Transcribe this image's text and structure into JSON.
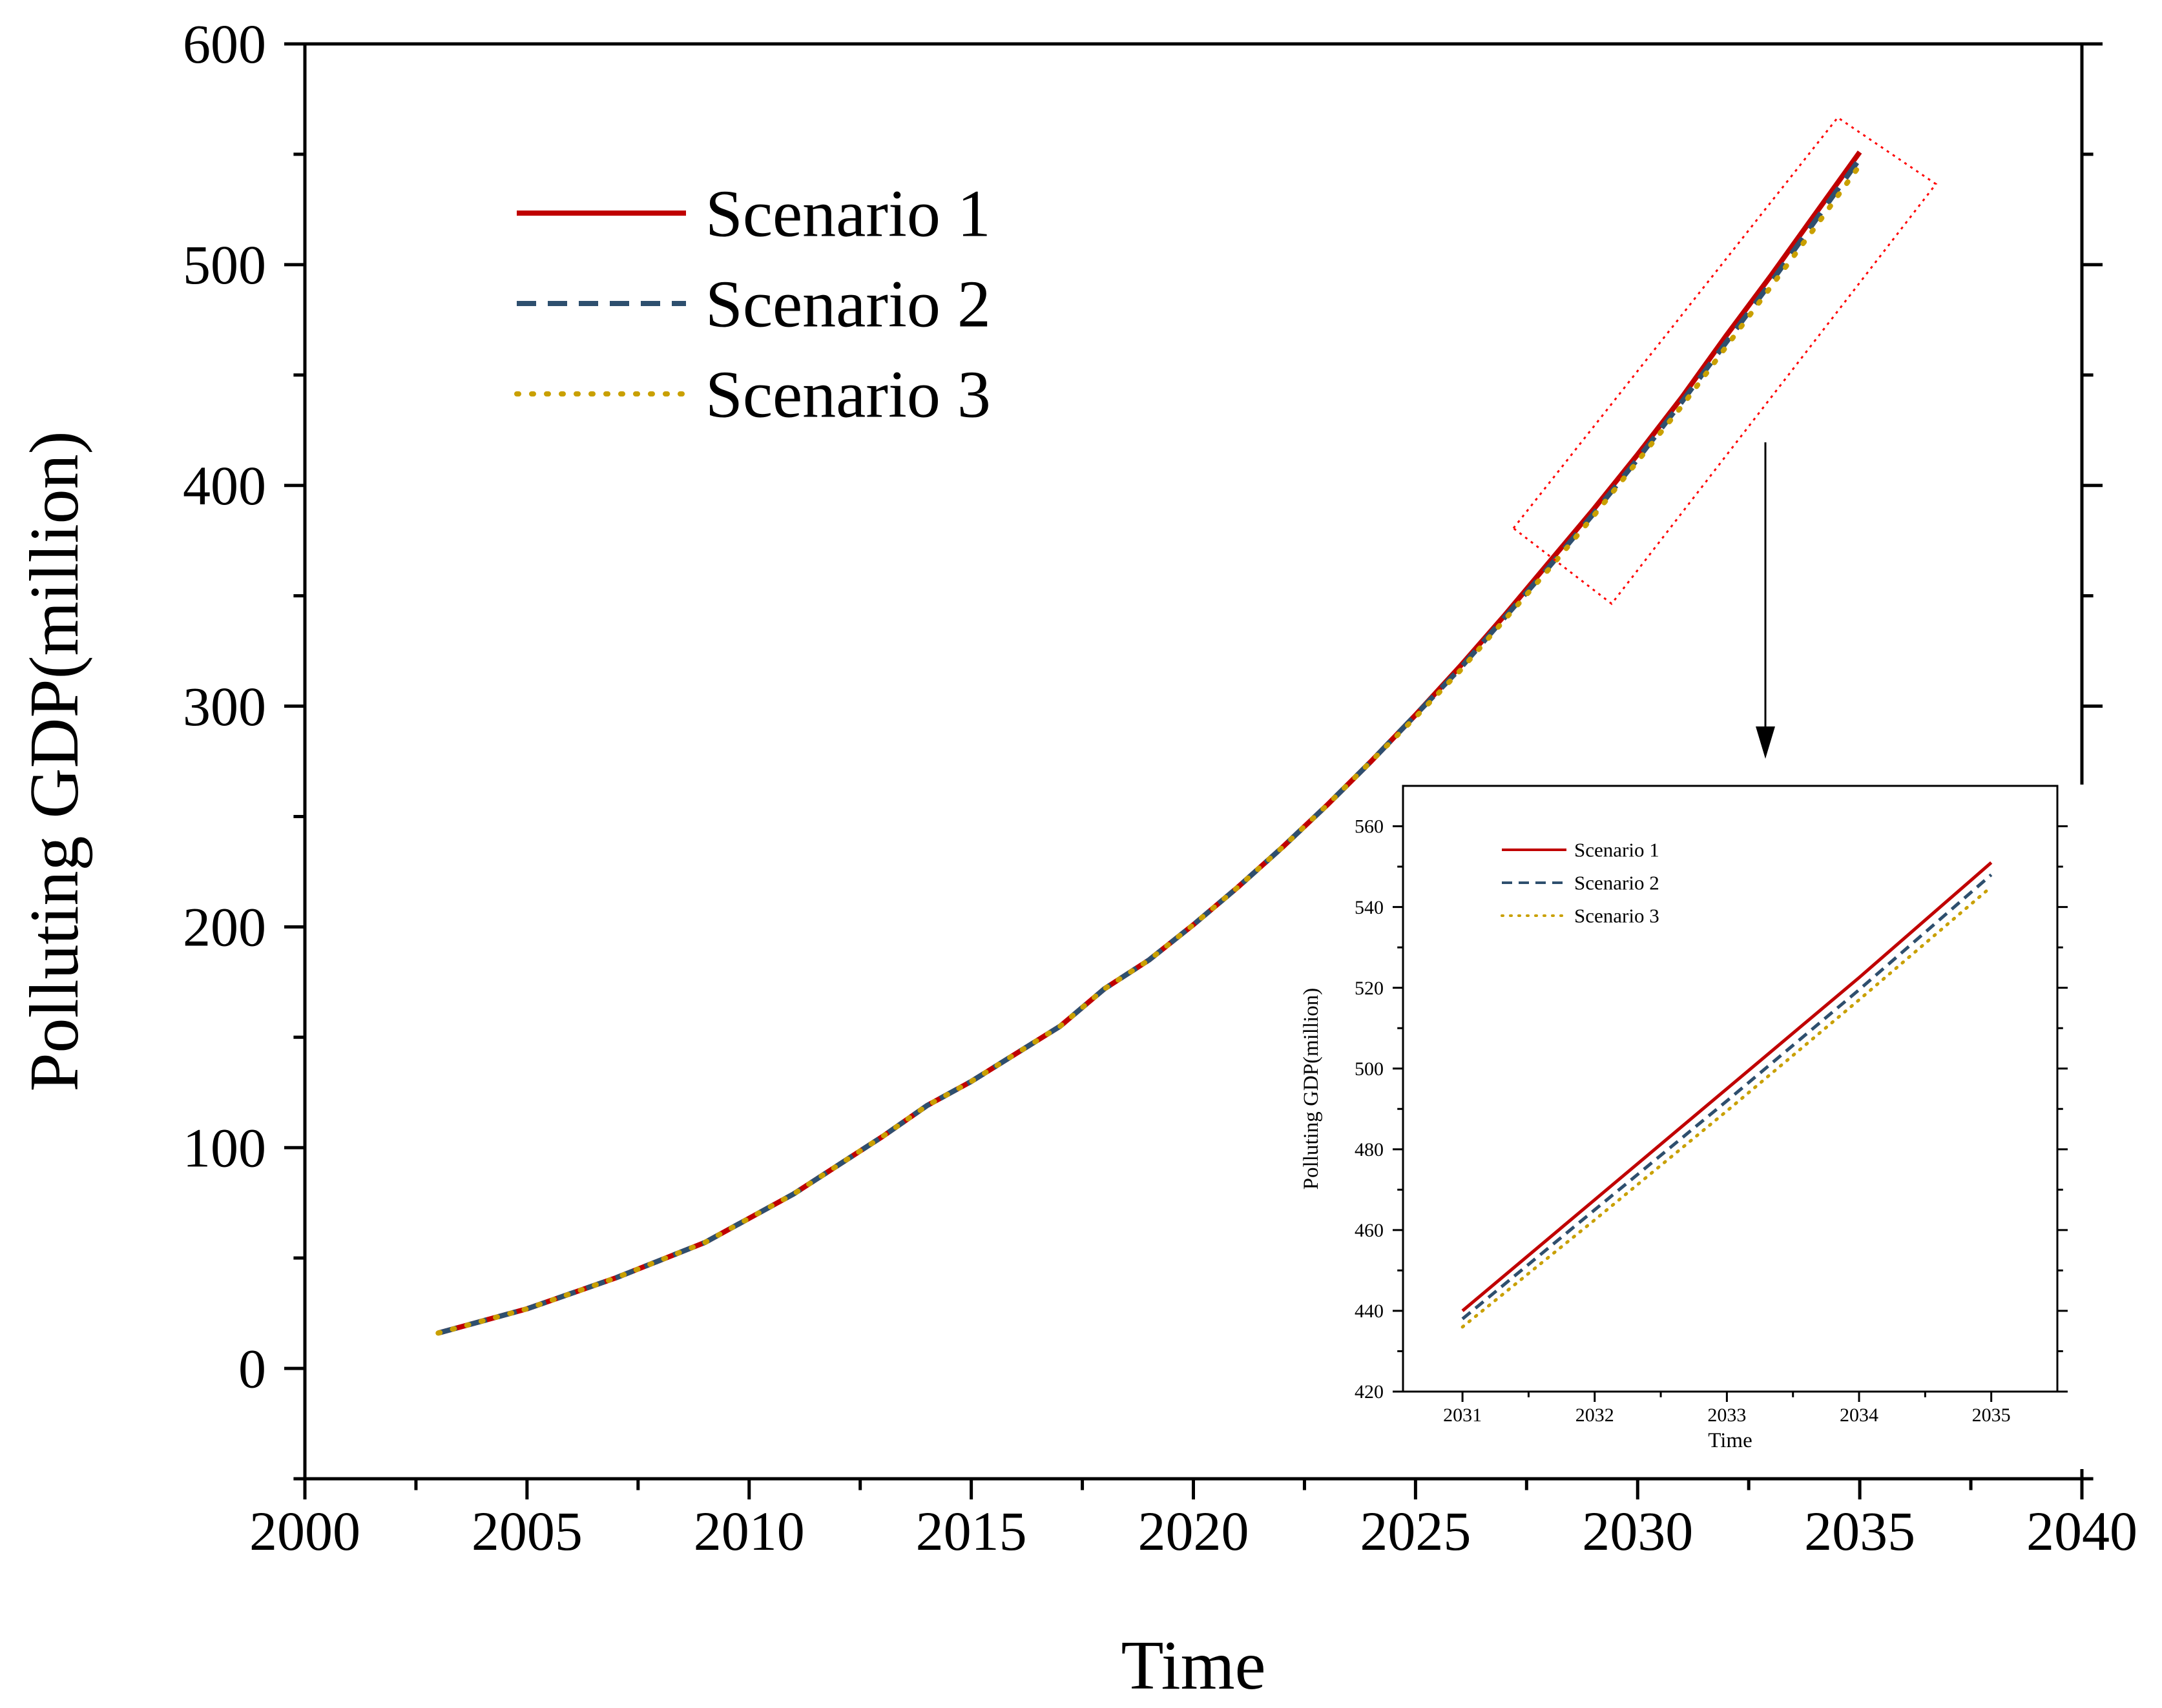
{
  "chart_data": [
    {
      "id": "main",
      "type": "line",
      "title": "",
      "xlabel": "Time",
      "ylabel": "Polluting GDP(million)",
      "xlim": [
        2000,
        2040
      ],
      "ylim": [
        -50,
        600
      ],
      "xticks": [
        2000,
        2005,
        2010,
        2015,
        2020,
        2025,
        2030,
        2035,
        2040
      ],
      "yticks": [
        0,
        100,
        200,
        300,
        400,
        500,
        600
      ],
      "legend_position": "top-left",
      "series": [
        {
          "name": "Scenario 1",
          "color": "#C00000",
          "style": "solid",
          "x": [
            2003,
            2005,
            2007,
            2009,
            2011,
            2013,
            2014,
            2015,
            2017,
            2018,
            2019,
            2020,
            2021,
            2022,
            2023,
            2024,
            2025,
            2026,
            2027,
            2028,
            2029,
            2030,
            2031,
            2032,
            2033,
            2034,
            2035
          ],
          "values": [
            16,
            27,
            41,
            57,
            79,
            105,
            119,
            130,
            155,
            172,
            185,
            201,
            218,
            236,
            255,
            275,
            296,
            318,
            341,
            365,
            389,
            414,
            440,
            468,
            495,
            523,
            551
          ]
        },
        {
          "name": "Scenario 2",
          "color": "#2E4F6E",
          "style": "dashed",
          "x": [
            2003,
            2005,
            2007,
            2009,
            2011,
            2013,
            2014,
            2015,
            2017,
            2018,
            2019,
            2020,
            2021,
            2022,
            2023,
            2024,
            2025,
            2026,
            2027,
            2028,
            2029,
            2030,
            2031,
            2032,
            2033,
            2034,
            2035
          ],
          "values": [
            16,
            27,
            41,
            57,
            79,
            105,
            119,
            130,
            155,
            172,
            185,
            201,
            218,
            236,
            255,
            275,
            296,
            317,
            340,
            363,
            387,
            412,
            438,
            465,
            492,
            520,
            548
          ]
        },
        {
          "name": "Scenario 3",
          "color": "#C9A000",
          "style": "dotted",
          "x": [
            2003,
            2005,
            2007,
            2009,
            2011,
            2013,
            2014,
            2015,
            2017,
            2018,
            2019,
            2020,
            2021,
            2022,
            2023,
            2024,
            2025,
            2026,
            2027,
            2028,
            2029,
            2030,
            2031,
            2032,
            2033,
            2034,
            2035
          ],
          "values": [
            16,
            27,
            41,
            57,
            79,
            105,
            119,
            130,
            155,
            172,
            185,
            201,
            218,
            236,
            255,
            275,
            295,
            316,
            339,
            362,
            386,
            411,
            436,
            463,
            490,
            517,
            545
          ]
        }
      ]
    },
    {
      "id": "inset",
      "type": "line",
      "title": "",
      "xlabel": "Time",
      "ylabel": "Polluting GDP(million)",
      "xlim": [
        2030.55,
        2035.5
      ],
      "ylim": [
        420,
        570
      ],
      "xticks": [
        2031,
        2032,
        2033,
        2034,
        2035
      ],
      "yticks": [
        420,
        440,
        460,
        480,
        500,
        520,
        540,
        560
      ],
      "legend_position": "top-left",
      "series": [
        {
          "name": "Scenario 1",
          "color": "#C00000",
          "style": "solid",
          "x": [
            2031,
            2032,
            2033,
            2034,
            2035
          ],
          "values": [
            440,
            467.5,
            495,
            522.5,
            551
          ]
        },
        {
          "name": "Scenario 2",
          "color": "#2E4F6E",
          "style": "dashed",
          "x": [
            2031,
            2032,
            2033,
            2034,
            2035
          ],
          "values": [
            438,
            465,
            492,
            519.5,
            548
          ]
        },
        {
          "name": "Scenario 3",
          "color": "#C9A000",
          "style": "dotted",
          "x": [
            2031,
            2032,
            2033,
            2034,
            2035
          ],
          "values": [
            436,
            462.5,
            489.5,
            517,
            545
          ]
        }
      ]
    }
  ]
}
